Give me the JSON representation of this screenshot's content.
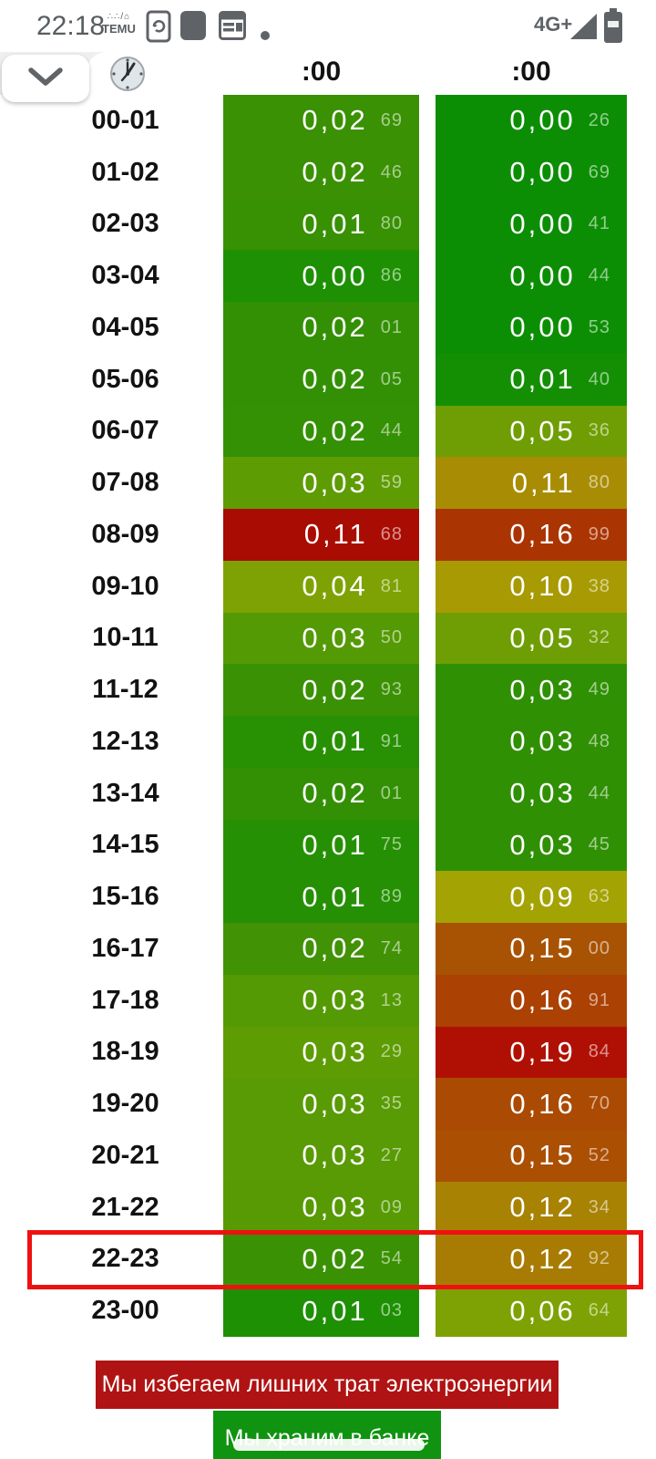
{
  "status_bar": {
    "time": "22:18",
    "temu_badge_top": "∴∴/⌂",
    "temu_badge": "TEMU",
    "network": "4G+"
  },
  "header": {
    "col1_label": ":00",
    "col2_label": ":00"
  },
  "table": {
    "highlighted_row": "22-23",
    "rows": [
      {
        "hour": "00-01",
        "c1": {
          "v": "0,02",
          "s": "69",
          "bg": "#3a9103"
        },
        "c2": {
          "v": "0,00",
          "s": "26",
          "bg": "#0c8e04"
        }
      },
      {
        "hour": "01-02",
        "c1": {
          "v": "0,02",
          "s": "46",
          "bg": "#3a9103"
        },
        "c2": {
          "v": "0,00",
          "s": "69",
          "bg": "#0c8e04"
        }
      },
      {
        "hour": "02-03",
        "c1": {
          "v": "0,01",
          "s": "80",
          "bg": "#379103"
        },
        "c2": {
          "v": "0,00",
          "s": "41",
          "bg": "#0c8e04"
        }
      },
      {
        "hour": "03-04",
        "c1": {
          "v": "0,00",
          "s": "86",
          "bg": "#1e9003"
        },
        "c2": {
          "v": "0,00",
          "s": "44",
          "bg": "#0c8e04"
        }
      },
      {
        "hour": "04-05",
        "c1": {
          "v": "0,02",
          "s": "01",
          "bg": "#339004"
        },
        "c2": {
          "v": "0,00",
          "s": "53",
          "bg": "#0c8e04"
        }
      },
      {
        "hour": "05-06",
        "c1": {
          "v": "0,02",
          "s": "05",
          "bg": "#339004"
        },
        "c2": {
          "v": "0,01",
          "s": "40",
          "bg": "#148f04"
        }
      },
      {
        "hour": "06-07",
        "c1": {
          "v": "0,02",
          "s": "44",
          "bg": "#349104"
        },
        "c2": {
          "v": "0,05",
          "s": "36",
          "bg": "#6f9e04"
        }
      },
      {
        "hour": "07-08",
        "c1": {
          "v": "0,03",
          "s": "59",
          "bg": "#5e9c04"
        },
        "c2": {
          "v": "0,11",
          "s": "80",
          "bg": "#a88d04"
        }
      },
      {
        "hour": "08-09",
        "c1": {
          "v": "0,11",
          "s": "68",
          "bg": "#a80c03"
        },
        "c2": {
          "v": "0,16",
          "s": "99",
          "bg": "#ab3403"
        }
      },
      {
        "hour": "09-10",
        "c1": {
          "v": "0,04",
          "s": "81",
          "bg": "#7ea203"
        },
        "c2": {
          "v": "0,10",
          "s": "38",
          "bg": "#a89a03"
        }
      },
      {
        "hour": "10-11",
        "c1": {
          "v": "0,03",
          "s": "50",
          "bg": "#549a04"
        },
        "c2": {
          "v": "0,05",
          "s": "32",
          "bg": "#6f9e04"
        }
      },
      {
        "hour": "11-12",
        "c1": {
          "v": "0,02",
          "s": "93",
          "bg": "#3a9103"
        },
        "c2": {
          "v": "0,03",
          "s": "49",
          "bg": "#2f9004"
        }
      },
      {
        "hour": "12-13",
        "c1": {
          "v": "0,01",
          "s": "91",
          "bg": "#289003"
        },
        "c2": {
          "v": "0,03",
          "s": "48",
          "bg": "#2f9004"
        }
      },
      {
        "hour": "13-14",
        "c1": {
          "v": "0,02",
          "s": "01",
          "bg": "#339004"
        },
        "c2": {
          "v": "0,03",
          "s": "44",
          "bg": "#2f9004"
        }
      },
      {
        "hour": "14-15",
        "c1": {
          "v": "0,01",
          "s": "75",
          "bg": "#259003"
        },
        "c2": {
          "v": "0,03",
          "s": "45",
          "bg": "#2f9004"
        }
      },
      {
        "hour": "15-16",
        "c1": {
          "v": "0,01",
          "s": "89",
          "bg": "#259003"
        },
        "c2": {
          "v": "0,09",
          "s": "63",
          "bg": "#a3a303"
        }
      },
      {
        "hour": "16-17",
        "c1": {
          "v": "0,02",
          "s": "74",
          "bg": "#419205"
        },
        "c2": {
          "v": "0,15",
          "s": "00",
          "bg": "#a85303"
        }
      },
      {
        "hour": "17-18",
        "c1": {
          "v": "0,03",
          "s": "13",
          "bg": "#549a04"
        },
        "c2": {
          "v": "0,16",
          "s": "91",
          "bg": "#ab4103"
        }
      },
      {
        "hour": "18-19",
        "c1": {
          "v": "0,03",
          "s": "29",
          "bg": "#5e9c04"
        },
        "c2": {
          "v": "0,19",
          "s": "84",
          "bg": "#b01003"
        }
      },
      {
        "hour": "19-20",
        "c1": {
          "v": "0,03",
          "s": "35",
          "bg": "#599b04"
        },
        "c2": {
          "v": "0,16",
          "s": "70",
          "bg": "#ab4a02"
        }
      },
      {
        "hour": "20-21",
        "c1": {
          "v": "0,03",
          "s": "27",
          "bg": "#599b04"
        },
        "c2": {
          "v": "0,15",
          "s": "52",
          "bg": "#ab4f03"
        }
      },
      {
        "hour": "21-22",
        "c1": {
          "v": "0,03",
          "s": "09",
          "bg": "#579a04"
        },
        "c2": {
          "v": "0,12",
          "s": "34",
          "bg": "#a88203"
        }
      },
      {
        "hour": "22-23",
        "c1": {
          "v": "0,02",
          "s": "54",
          "bg": "#3a9103"
        },
        "c2": {
          "v": "0,12",
          "s": "92",
          "bg": "#a87c03"
        }
      },
      {
        "hour": "23-00",
        "c1": {
          "v": "0,01",
          "s": "03",
          "bg": "#1d9003"
        },
        "c2": {
          "v": "0,06",
          "s": "64",
          "bg": "#7ea203"
        }
      }
    ]
  },
  "banners": {
    "red": {
      "label": "Мы избегаем лишних трат электроэнергии",
      "bg": "#b01313"
    },
    "green": {
      "label": "Мы храним в банке",
      "bg": "#0f9310"
    }
  },
  "colors": {
    "highlight_border": "#ee1111",
    "status_icon": "#5f6368",
    "header_band": "#efefef"
  }
}
